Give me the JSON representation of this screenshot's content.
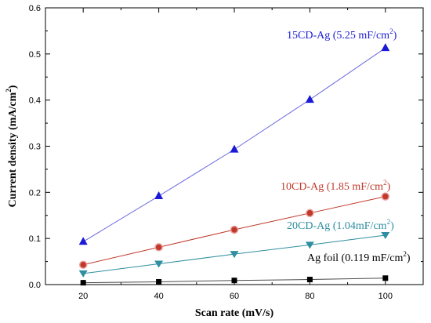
{
  "chart_data": {
    "type": "scatter",
    "xlabel": "Scan rate (mV/s)",
    "ylabel_main": "Current density (mA/cm",
    "ylabel_sup": "2",
    "ylabel_tail": ")",
    "xlim": [
      10,
      110
    ],
    "ylim": [
      0,
      0.6
    ],
    "xticks": [
      20,
      40,
      60,
      80,
      100
    ],
    "yticks": [
      0.0,
      0.1,
      0.2,
      0.3,
      0.4,
      0.5,
      0.6
    ],
    "ytick_labels": [
      "0.0",
      "0.1",
      "0.2",
      "0.3",
      "0.4",
      "0.5",
      "0.6"
    ],
    "series": [
      {
        "key": "ag-foil",
        "marker": "square",
        "color": "#000000",
        "line_color": "#4a4a4a",
        "x": [
          20,
          40,
          60,
          80,
          100
        ],
        "y": [
          0.004,
          0.006,
          0.009,
          0.011,
          0.014
        ],
        "label_main": "Ag foil (0.119 mF/cm",
        "label_sup": "2",
        "label_tail": ")",
        "label_color": "#000000"
      },
      {
        "key": "20cd-ag",
        "marker": "triangle-down",
        "color": "#2e8fa0",
        "line_color": "#2e8fa0",
        "x": [
          20,
          40,
          60,
          80,
          100
        ],
        "y": [
          0.024,
          0.045,
          0.066,
          0.086,
          0.107
        ],
        "label_main": "20CD-Ag (1.04mF/cm",
        "label_sup": "2",
        "label_tail": ")",
        "label_color": "#2e8fa0"
      },
      {
        "key": "10cd-ag",
        "marker": "circle",
        "color": "#c0392b",
        "line_color": "#c0392b",
        "x": [
          20,
          40,
          60,
          80,
          100
        ],
        "y": [
          0.043,
          0.081,
          0.119,
          0.155,
          0.191
        ],
        "label_main": "10CD-Ag (1.85 mF/cm",
        "label_sup": "2",
        "label_tail": ")",
        "label_color": "#c0392b"
      },
      {
        "key": "15cd-ag",
        "marker": "triangle-up",
        "color": "#1a1ad6",
        "line_color": "#6a6ae0",
        "x": [
          20,
          40,
          60,
          80,
          100
        ],
        "y": [
          0.093,
          0.192,
          0.293,
          0.401,
          0.513
        ],
        "label_main": "15CD-Ag (5.25 mF/cm",
        "label_sup": "2",
        "label_tail": ")",
        "label_color": "#1a1ad6"
      }
    ]
  }
}
